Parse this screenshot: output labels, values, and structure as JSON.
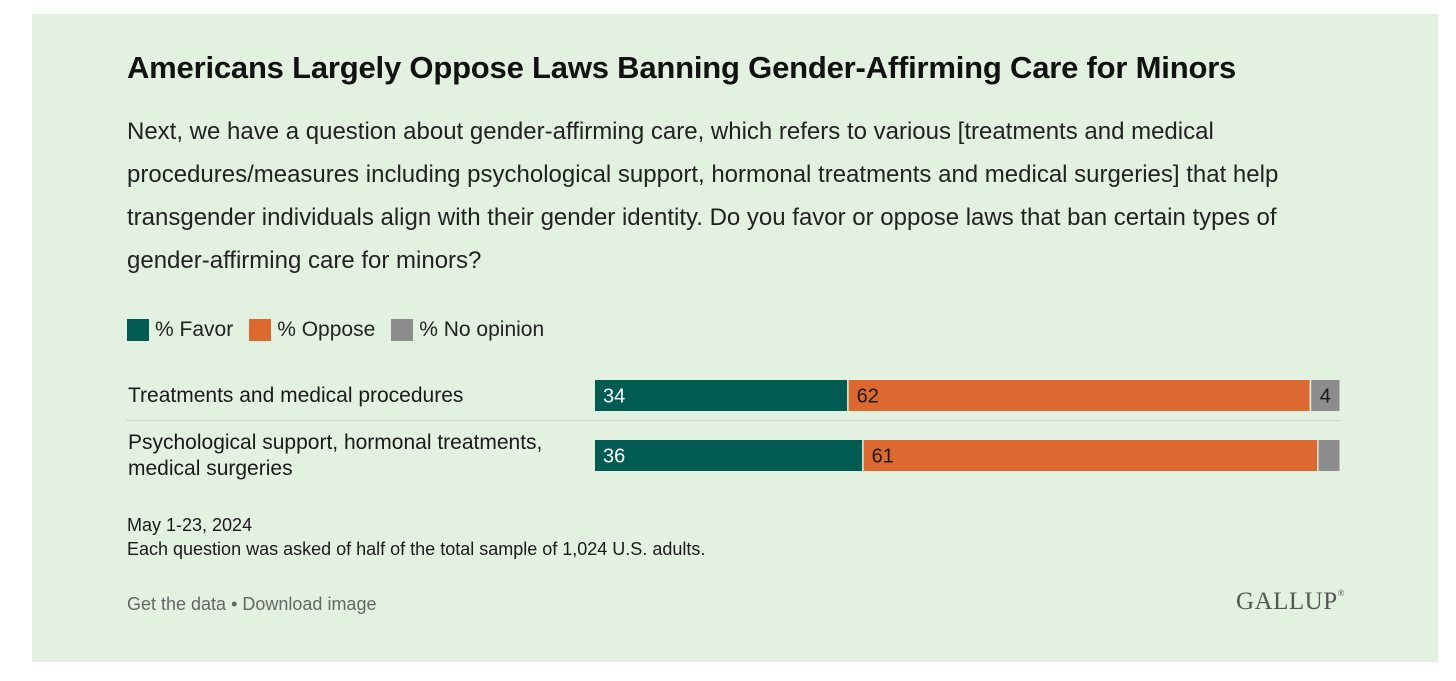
{
  "title": "Americans Largely Oppose Laws Banning Gender-Affirming Care for Minors",
  "question": "Next, we have a question about gender-affirming care, which refers to various [treatments and medical procedures/measures including psychological support, hormonal treatments and medical surgeries] that help transgender individuals align with their gender identity. Do you favor or oppose laws that ban certain types of gender-affirming care for minors?",
  "legend": [
    {
      "label": "% Favor",
      "color": "#005c53"
    },
    {
      "label": "% Oppose",
      "color": "#dc6a30"
    },
    {
      "label": "% No opinion",
      "color": "#8c8c8c"
    }
  ],
  "chart_data": {
    "type": "bar",
    "orientation": "horizontal",
    "stacked": true,
    "categories": [
      "Treatments and medical procedures",
      "Psychological support, hormonal treatments, medical surgeries"
    ],
    "series": [
      {
        "name": "% Favor",
        "color": "#005c53",
        "values": [
          34,
          36
        ],
        "labels": [
          "34",
          "36"
        ]
      },
      {
        "name": "% Oppose",
        "color": "#dc6a30",
        "values": [
          62,
          61
        ],
        "labels": [
          "62",
          "61"
        ]
      },
      {
        "name": "% No opinion",
        "color": "#8c8c8c",
        "values": [
          4,
          3
        ],
        "labels": [
          "4",
          ""
        ]
      }
    ],
    "xlim": [
      0,
      100
    ]
  },
  "footer": {
    "date": "May 1-23, 2024",
    "note": "Each question was asked of half of the total sample of 1,024 U.S. adults.",
    "get_data": "Get the data",
    "separator": " • ",
    "download": "Download image",
    "logo": "GALLUP"
  }
}
